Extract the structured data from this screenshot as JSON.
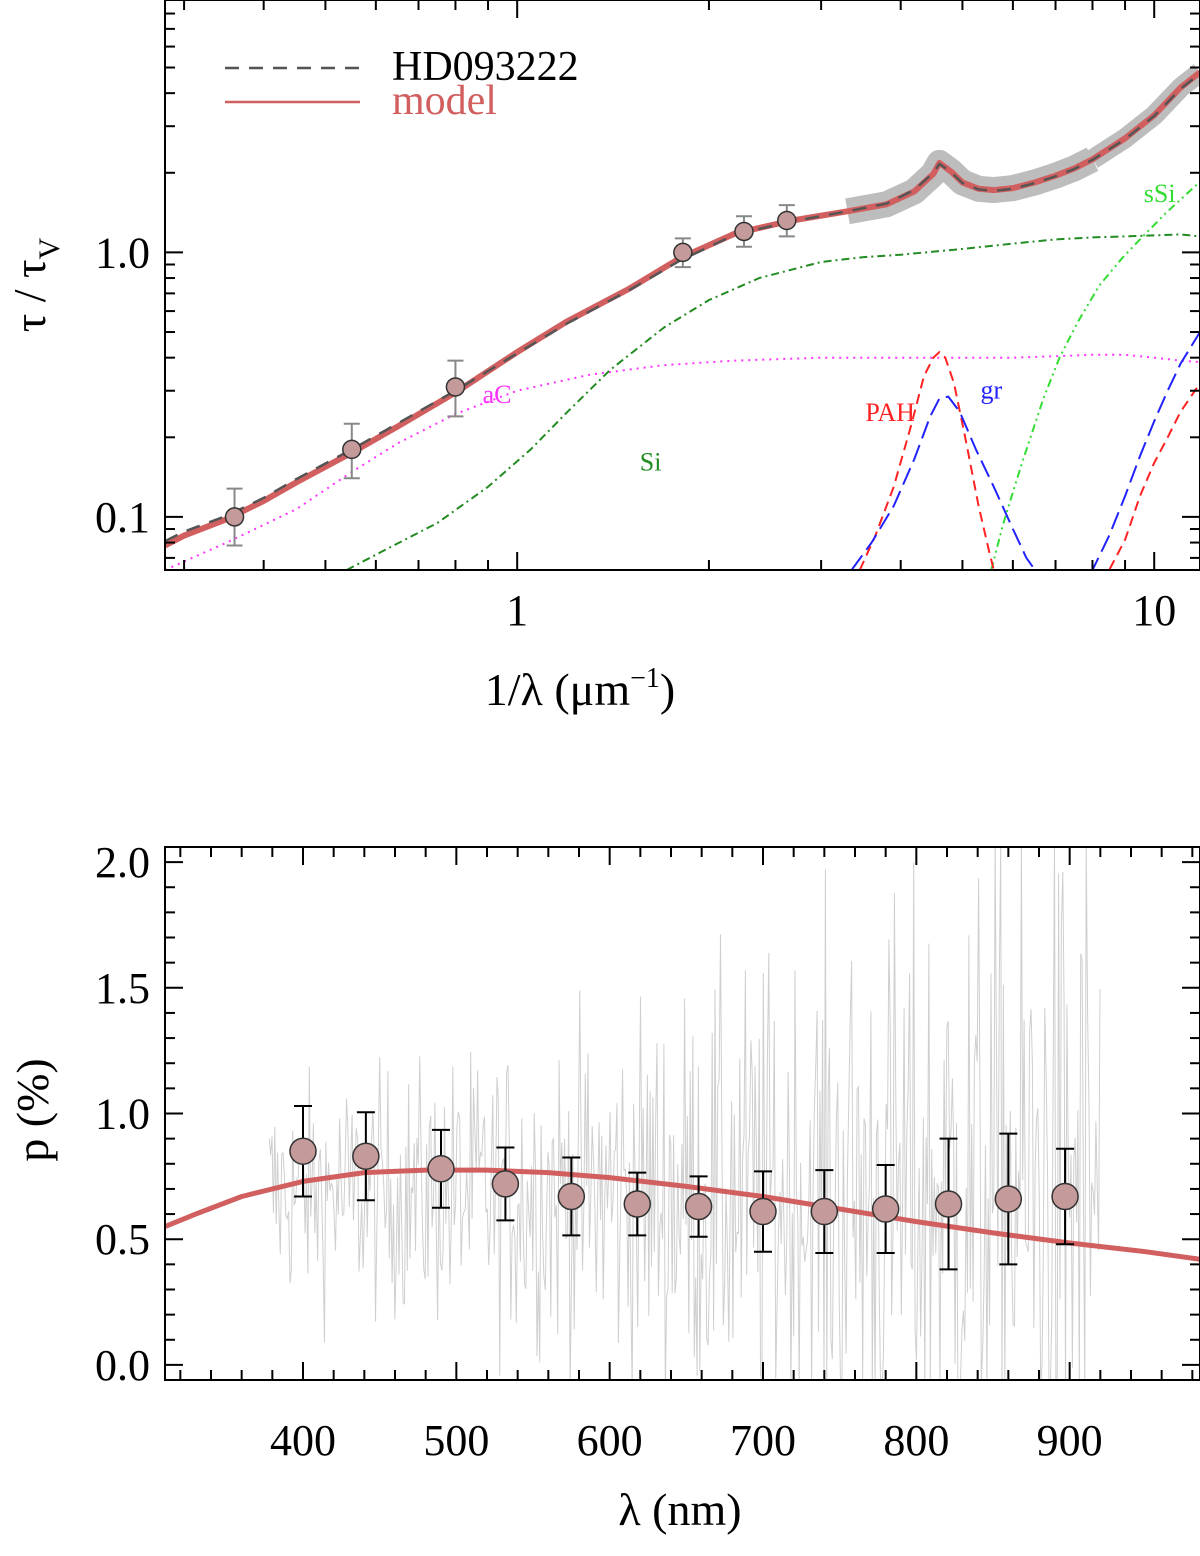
{
  "colors": {
    "model": "#d25f5f",
    "observed": "#555555",
    "uncertainty_band": "#bdbdbd",
    "marker_fill": "#c49a9a",
    "marker_edge": "#333333",
    "aC": "#ff33ff",
    "Si": "#228b22",
    "sSi": "#33dd33",
    "PAH": "#ff2222",
    "gr": "#2222ff",
    "noise": "#cfcfcf"
  },
  "chart_data": [
    {
      "type": "line",
      "name": "extinction",
      "xscale": "log",
      "yscale": "log",
      "xlim": [
        0.28,
        11.8
      ],
      "ylim": [
        0.063,
        9.0
      ],
      "xlabel": "1/λ (μm",
      "xlabel_sup": "−1",
      "xlabel_close": ")",
      "ylabel": "τ / τ",
      "ylabel_sub": "V",
      "xticks": [
        {
          "value": 1,
          "label": "1"
        },
        {
          "value": 10,
          "label": "10"
        }
      ],
      "yticks": [
        {
          "value": 0.1,
          "label": "0.1"
        },
        {
          "value": 1.0,
          "label": "1.0"
        }
      ],
      "legend": {
        "position": "top-left",
        "entries": [
          {
            "label": "HD093222",
            "style": "dashed",
            "color_key": "observed"
          },
          {
            "label": "model",
            "style": "solid",
            "color_key": "model"
          }
        ]
      },
      "series": [
        {
          "name": "model",
          "x": [
            0.28,
            0.3,
            0.35,
            0.4,
            0.45,
            0.55,
            0.65,
            0.8,
            1.0,
            1.2,
            1.5,
            1.8,
            2.2,
            2.7,
            3.3,
            3.8,
            4.2,
            4.5,
            4.6,
            4.8,
            5.0,
            5.3,
            5.6,
            6.0,
            6.5,
            7.0,
            7.5,
            8.0,
            9.0,
            10.0,
            11.0,
            11.8
          ],
          "y": [
            0.078,
            0.085,
            0.098,
            0.115,
            0.135,
            0.175,
            0.22,
            0.295,
            0.42,
            0.55,
            0.73,
            0.95,
            1.18,
            1.32,
            1.43,
            1.52,
            1.7,
            1.98,
            2.18,
            2.02,
            1.84,
            1.74,
            1.72,
            1.75,
            1.84,
            1.95,
            2.08,
            2.25,
            2.7,
            3.3,
            4.2,
            4.8
          ]
        },
        {
          "name": "HD093222",
          "x": [
            0.28,
            0.3,
            0.35,
            0.4,
            0.45,
            0.55,
            0.65,
            0.8,
            1.0,
            1.2,
            1.5,
            1.8,
            2.2,
            2.7,
            3.3,
            3.8,
            4.2,
            4.5,
            4.6,
            4.8,
            5.0,
            5.3,
            5.6,
            6.0,
            6.5,
            7.0,
            7.5,
            8.0,
            9.0,
            10.0,
            11.0,
            11.8
          ],
          "y": [
            0.081,
            0.088,
            0.101,
            0.118,
            0.139,
            0.18,
            0.226,
            0.3,
            0.415,
            0.54,
            0.72,
            0.93,
            1.17,
            1.31,
            1.43,
            1.53,
            1.72,
            2.0,
            2.16,
            2.01,
            1.83,
            1.73,
            1.71,
            1.74,
            1.83,
            1.94,
            2.07,
            2.24,
            2.68,
            3.28,
            4.15,
            4.75
          ]
        },
        {
          "name": "aC",
          "x": [
            0.28,
            0.35,
            0.45,
            0.55,
            0.65,
            0.8,
            1.0,
            1.3,
            1.7,
            2.2,
            3.0,
            4.0,
            5.0,
            6.0,
            7.0,
            8.0,
            9.0,
            10.0,
            11.0,
            11.8
          ],
          "y": [
            0.063,
            0.08,
            0.107,
            0.148,
            0.19,
            0.245,
            0.3,
            0.345,
            0.375,
            0.39,
            0.4,
            0.4,
            0.4,
            0.4,
            0.405,
            0.41,
            0.41,
            0.4,
            0.39,
            0.385
          ]
        },
        {
          "name": "Si",
          "x": [
            0.54,
            0.62,
            0.75,
            0.9,
            1.05,
            1.2,
            1.4,
            1.7,
            2.0,
            2.4,
            3.0,
            3.5,
            4.0,
            5.0,
            6.0,
            7.0,
            8.0,
            9.0,
            10.0,
            11.0,
            11.8
          ],
          "y": [
            0.063,
            0.075,
            0.095,
            0.13,
            0.18,
            0.25,
            0.36,
            0.52,
            0.66,
            0.8,
            0.92,
            0.96,
            0.98,
            1.03,
            1.08,
            1.12,
            1.14,
            1.15,
            1.16,
            1.17,
            1.15
          ]
        },
        {
          "name": "sSi",
          "x": [
            5.55,
            5.8,
            6.2,
            6.7,
            7.1,
            7.6,
            8.2,
            8.9,
            9.6,
            10.4,
            11.2,
            11.8
          ],
          "y": [
            0.063,
            0.095,
            0.16,
            0.28,
            0.4,
            0.55,
            0.75,
            0.95,
            1.15,
            1.4,
            1.65,
            1.85
          ]
        },
        {
          "name": "PAH",
          "x": [
            3.45,
            3.65,
            3.9,
            4.15,
            4.35,
            4.5,
            4.6,
            4.7,
            4.85,
            5.05,
            5.3,
            5.5,
            5.6,
            8.5,
            9.0,
            9.5,
            10.0,
            10.5,
            11.0,
            11.8
          ],
          "y": [
            0.063,
            0.085,
            0.13,
            0.22,
            0.34,
            0.4,
            0.42,
            0.4,
            0.32,
            0.2,
            0.11,
            0.075,
            0.063,
            0.063,
            0.082,
            0.12,
            0.16,
            0.2,
            0.25,
            0.32
          ]
        },
        {
          "name": "gr",
          "x": [
            3.35,
            3.6,
            3.9,
            4.2,
            4.45,
            4.6,
            4.75,
            4.95,
            5.25,
            5.6,
            6.0,
            6.3,
            6.5,
            8.0,
            8.5,
            9.0,
            9.5,
            10.0,
            10.5,
            11.0,
            11.8
          ],
          "y": [
            0.063,
            0.08,
            0.11,
            0.165,
            0.24,
            0.28,
            0.285,
            0.25,
            0.18,
            0.13,
            0.09,
            0.07,
            0.063,
            0.063,
            0.085,
            0.12,
            0.17,
            0.23,
            0.3,
            0.38,
            0.5
          ]
        }
      ],
      "band": {
        "name": "uncertainty",
        "x": [
          3.3,
          3.8,
          4.2,
          4.5,
          4.6,
          4.8,
          5.0,
          5.3,
          5.6,
          6.0,
          6.5,
          7.0,
          7.5,
          8.0
        ],
        "y": [
          1.43,
          1.52,
          1.7,
          1.98,
          2.18,
          2.02,
          1.84,
          1.74,
          1.72,
          1.75,
          1.84,
          1.95,
          2.08,
          2.25
        ]
      },
      "band_tail": {
        "x": [
          8.0,
          9.0,
          10.0,
          11.0,
          11.8
        ],
        "y": [
          2.25,
          2.7,
          3.3,
          4.2,
          4.8
        ]
      },
      "points": {
        "x": [
          0.36,
          0.55,
          0.8,
          1.82,
          2.27,
          2.65
        ],
        "y": [
          0.1,
          0.18,
          0.31,
          1.0,
          1.2,
          1.32
        ],
        "yerr_low": [
          0.078,
          0.14,
          0.24,
          0.88,
          1.05,
          1.15
        ],
        "yerr_high": [
          0.128,
          0.225,
          0.39,
          1.13,
          1.37,
          1.51
        ]
      },
      "annotations": [
        {
          "text": "aC",
          "x": 0.93,
          "y": 0.27,
          "color_key": "aC"
        },
        {
          "text": "Si",
          "x": 1.62,
          "y": 0.15,
          "color_key": "Si"
        },
        {
          "text": "sSi",
          "x": 10.2,
          "y": 1.55,
          "color_key": "sSi"
        },
        {
          "text": "PAH",
          "x": 3.85,
          "y": 0.23,
          "color_key": "PAH"
        },
        {
          "text": "gr",
          "x": 5.55,
          "y": 0.28,
          "color_key": "gr"
        }
      ]
    },
    {
      "type": "line",
      "name": "polarization",
      "xlim": [
        310,
        985
      ],
      "ylim": [
        -0.06,
        2.06
      ],
      "xlabel": "λ   (nm)",
      "ylabel": "p (%)",
      "xticks": [
        {
          "value": 400,
          "label": "400"
        },
        {
          "value": 500,
          "label": "500"
        },
        {
          "value": 600,
          "label": "600"
        },
        {
          "value": 700,
          "label": "700"
        },
        {
          "value": 800,
          "label": "800"
        },
        {
          "value": 900,
          "label": "900"
        }
      ],
      "yticks": [
        {
          "value": 0.0,
          "label": "0.0"
        },
        {
          "value": 0.5,
          "label": "0.5"
        },
        {
          "value": 1.0,
          "label": "1.0"
        },
        {
          "value": 1.5,
          "label": "1.5"
        },
        {
          "value": 2.0,
          "label": "2.0"
        }
      ],
      "noise_range": [
        378,
        920
      ],
      "series": [
        {
          "name": "model",
          "x": [
            310,
            330,
            360,
            400,
            440,
            480,
            520,
            560,
            600,
            650,
            700,
            750,
            800,
            850,
            900,
            950,
            985
          ],
          "y": [
            0.55,
            0.6,
            0.67,
            0.73,
            0.765,
            0.775,
            0.775,
            0.765,
            0.745,
            0.71,
            0.67,
            0.62,
            0.57,
            0.525,
            0.485,
            0.45,
            0.42
          ]
        }
      ],
      "points": {
        "x": [
          400,
          441,
          490,
          532,
          575,
          618,
          658,
          700,
          740,
          780,
          821,
          860,
          897
        ],
        "y": [
          0.85,
          0.83,
          0.78,
          0.72,
          0.67,
          0.64,
          0.63,
          0.61,
          0.61,
          0.62,
          0.64,
          0.66,
          0.67
        ],
        "yerr": [
          0.18,
          0.175,
          0.155,
          0.145,
          0.155,
          0.125,
          0.12,
          0.16,
          0.165,
          0.175,
          0.26,
          0.26,
          0.19
        ]
      }
    }
  ]
}
